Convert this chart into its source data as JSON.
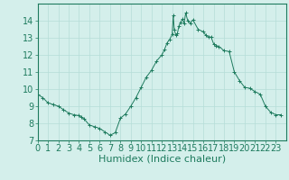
{
  "x": [
    0,
    0.5,
    1,
    1.5,
    2,
    2.5,
    3,
    3.5,
    4,
    4.25,
    4.5,
    5,
    5.5,
    6,
    6.5,
    7,
    7.5,
    8,
    8.5,
    9,
    9.5,
    10,
    10.5,
    11,
    11.5,
    12,
    12.25,
    12.5,
    12.75,
    13,
    13.1,
    13.2,
    13.35,
    13.5,
    13.65,
    13.8,
    14,
    14.15,
    14.3,
    14.5,
    14.75,
    15,
    15.5,
    16,
    16.25,
    16.5,
    16.75,
    17,
    17.25,
    17.5,
    18,
    18.5,
    19,
    19.5,
    20,
    20.5,
    21,
    21.5,
    22,
    22.5,
    23,
    23.5
  ],
  "y": [
    9.7,
    9.5,
    9.2,
    9.1,
    9.0,
    8.8,
    8.6,
    8.5,
    8.45,
    8.35,
    8.25,
    7.9,
    7.8,
    7.7,
    7.5,
    7.3,
    7.45,
    8.3,
    8.55,
    9.0,
    9.5,
    10.1,
    10.7,
    11.1,
    11.65,
    12.0,
    12.3,
    12.7,
    12.9,
    13.2,
    14.3,
    13.5,
    13.15,
    13.25,
    13.7,
    13.9,
    14.1,
    13.85,
    14.45,
    14.0,
    13.85,
    14.05,
    13.5,
    13.35,
    13.15,
    13.05,
    13.05,
    12.65,
    12.55,
    12.5,
    12.25,
    12.2,
    11.0,
    10.5,
    10.1,
    10.05,
    9.85,
    9.7,
    9.0,
    8.65,
    8.5,
    8.5
  ],
  "line_color": "#1e7b5e",
  "marker_color": "#1e7b5e",
  "bg_color": "#d4efeb",
  "grid_color": "#b5ddd8",
  "axis_color": "#1e7b5e",
  "tick_color": "#1e7b5e",
  "xlabel": "Humidex (Indice chaleur)",
  "xlim": [
    0,
    24
  ],
  "ylim": [
    7,
    15
  ],
  "yticks": [
    7,
    8,
    9,
    10,
    11,
    12,
    13,
    14
  ],
  "xticks": [
    0,
    1,
    2,
    3,
    4,
    5,
    6,
    7,
    8,
    9,
    10,
    11,
    12,
    13,
    14,
    15,
    16,
    17,
    18,
    19,
    20,
    21,
    22,
    23
  ],
  "font_size": 7,
  "label_font_size": 8
}
